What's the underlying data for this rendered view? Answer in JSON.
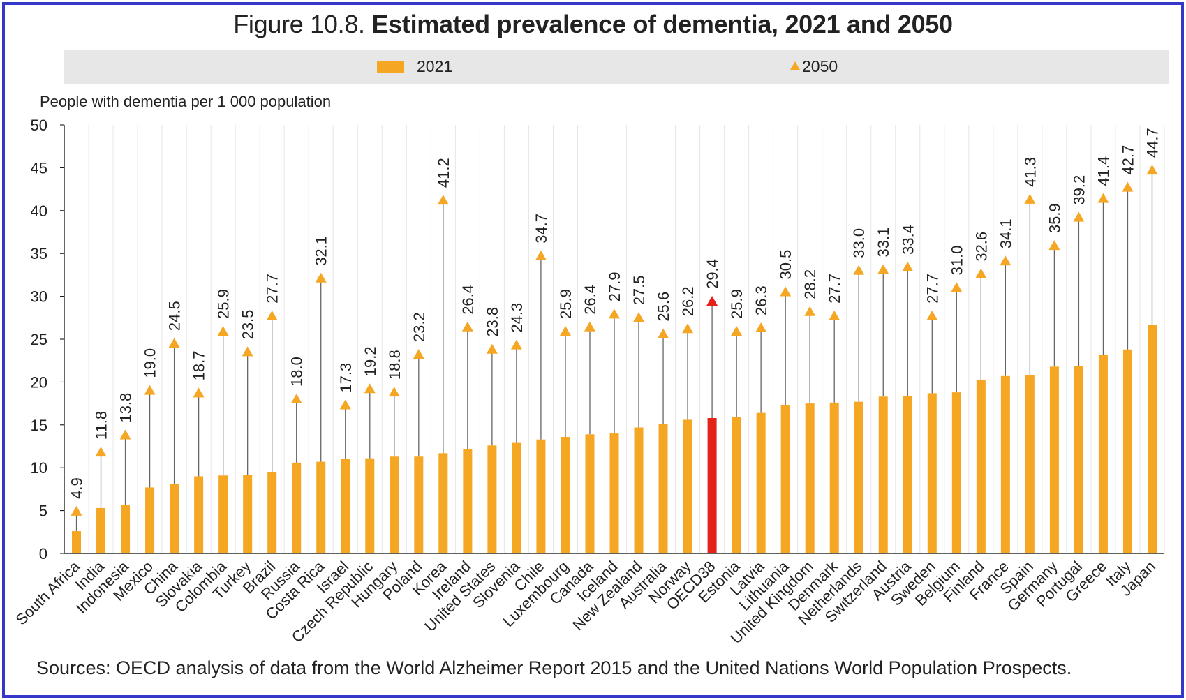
{
  "title": {
    "prefix": "Figure 10.8.",
    "bold": "Estimated prevalence of dementia, 2021 and 2050"
  },
  "legend": {
    "label_2021": "2021",
    "label_2050": "2050"
  },
  "source": "Sources: OECD analysis of data from the World Alzheimer Report 2015 and the United Nations World Population Prospects.",
  "colors": {
    "bar": "#f5a623",
    "highlight": "#e32219",
    "grid": "#e6e6e6",
    "connector": "#666666",
    "frame": "#3437c9",
    "legend_bg": "#e7e7e7"
  },
  "chart_data": {
    "type": "bar",
    "title": "Figure 10.8. Estimated prevalence of dementia, 2021 and 2050",
    "ylabel": "People with dementia per 1 000 population",
    "xlabel": "",
    "ylim": [
      0,
      50
    ],
    "yticks": [
      0,
      5,
      10,
      15,
      20,
      25,
      30,
      35,
      40,
      45,
      50
    ],
    "grid": "vertical",
    "legend": "top",
    "highlight": "OECD38",
    "categories": [
      "South Africa",
      "India",
      "Indonesia",
      "Mexico",
      "China",
      "Slovakia",
      "Colombia",
      "Turkey",
      "Brazil",
      "Russia",
      "Costa Rica",
      "Israel",
      "Czech Republic",
      "Hungary",
      "Poland",
      "Korea",
      "Ireland",
      "United States",
      "Slovenia",
      "Chile",
      "Luxembourg",
      "Canada",
      "Iceland",
      "New Zealand",
      "Australia",
      "Norway",
      "OECD38",
      "Estonia",
      "Latvia",
      "Lithuania",
      "United Kingdom",
      "Denmark",
      "Netherlands",
      "Switzerland",
      "Austria",
      "Sweden",
      "Belgium",
      "Finland",
      "France",
      "Spain",
      "Germany",
      "Portugal",
      "Greece",
      "Italy",
      "Japan"
    ],
    "series": [
      {
        "name": "2021",
        "marker": "bar",
        "values": [
          2.6,
          5.3,
          5.7,
          7.7,
          8.1,
          9.0,
          9.1,
          9.2,
          9.5,
          10.6,
          10.7,
          11.0,
          11.1,
          11.3,
          11.3,
          11.7,
          12.2,
          12.6,
          12.9,
          13.3,
          13.6,
          13.9,
          14.0,
          14.7,
          15.1,
          15.6,
          15.8,
          15.9,
          16.4,
          17.3,
          17.5,
          17.6,
          17.7,
          18.3,
          18.4,
          18.7,
          18.8,
          20.2,
          20.7,
          20.8,
          21.8,
          21.9,
          23.2,
          23.8,
          26.7
        ]
      },
      {
        "name": "2050",
        "marker": "triangle",
        "values": [
          4.9,
          11.8,
          13.8,
          19.0,
          24.5,
          18.7,
          25.9,
          23.5,
          27.7,
          18.0,
          32.1,
          17.3,
          19.2,
          18.8,
          23.2,
          41.2,
          26.4,
          23.8,
          24.3,
          34.7,
          25.9,
          26.4,
          27.9,
          27.5,
          25.6,
          26.2,
          29.4,
          25.9,
          26.3,
          30.5,
          28.2,
          27.7,
          33.0,
          33.1,
          33.4,
          27.7,
          31.0,
          32.6,
          34.1,
          41.3,
          35.9,
          39.2,
          41.4,
          42.7,
          44.7
        ],
        "labels": [
          "4.9",
          "11.8",
          "13.8",
          "19.0",
          "24.5",
          "18.7",
          "25.9",
          "23.5",
          "27.7",
          "18.0",
          "32.1",
          "17.3",
          "19.2",
          "18.8",
          "23.2",
          "41.2",
          "26.4",
          "23.8",
          "24.3",
          "34.7",
          "25.9",
          "26.4",
          "27.9",
          "27.5",
          "25.6",
          "26.2",
          "29.4",
          "25.9",
          "26.3",
          "30.5",
          "28.2",
          "27.7",
          "33.0",
          "33.1",
          "33.4",
          "27.7",
          "31.0",
          "32.6",
          "34.1",
          "41.3",
          "35.9",
          "39.2",
          "41.4",
          "42.7",
          "44.7"
        ]
      }
    ]
  }
}
